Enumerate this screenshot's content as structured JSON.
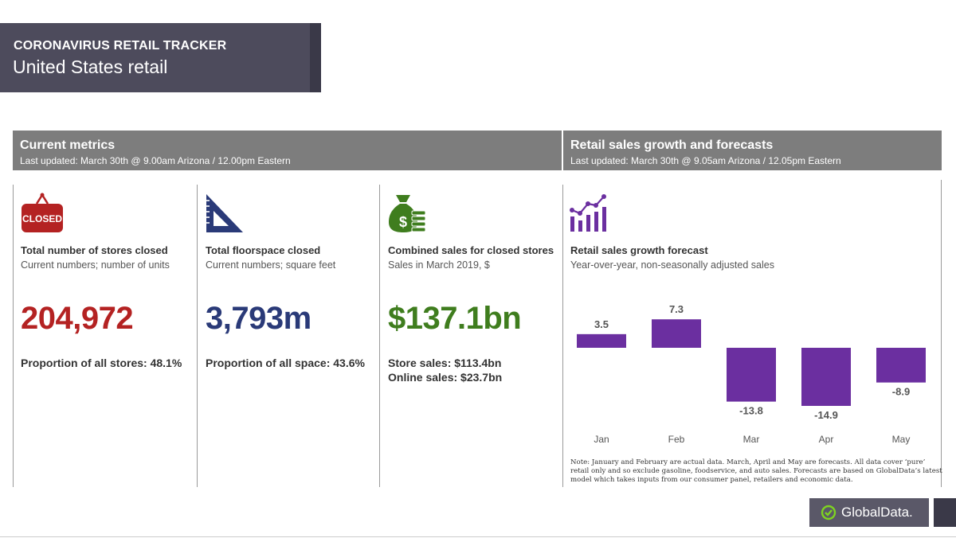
{
  "banner": {
    "title": "CORONAVIRUS RETAIL TRACKER",
    "subtitle": "United States retail"
  },
  "left_header": {
    "title": "Current metrics",
    "updated": "Last updated: March 30th @ 9.00am Arizona / 12.00pm Eastern"
  },
  "right_header": {
    "title": "Retail sales growth and forecasts",
    "updated": "Last updated: March 30th @ 9.05am Arizona / 12.05pm Eastern"
  },
  "metrics": [
    {
      "icon": "closed-sign-icon",
      "icon_text": "CLOSED",
      "title": "Total number of stores closed",
      "subtitle": "Current numbers; number of units",
      "value": "204,972",
      "proportion": "Proportion of all stores: 48.1%",
      "color": "#b42222"
    },
    {
      "icon": "set-square-icon",
      "title": "Total floorspace closed",
      "subtitle": "Current numbers; square feet",
      "value": "3,793m",
      "proportion": "Proportion of all space: 43.6%",
      "color": "#2a3a78"
    },
    {
      "icon": "money-bag-icon",
      "title": "Combined sales for closed stores",
      "subtitle": "Sales in March 2019, $",
      "value": "$137.1bn",
      "store_sales": "Store sales: $113.4bn",
      "online_sales": "Online sales: $23.7bn",
      "color": "#3f7d1e"
    }
  ],
  "chart_data": {
    "type": "bar",
    "title": "Retail sales growth forecast",
    "subtitle": "Year-over-year, non-seasonally adjusted sales",
    "categories": [
      "Jan",
      "Feb",
      "Mar",
      "Apr",
      "May"
    ],
    "values": [
      3.5,
      7.3,
      -13.8,
      -14.9,
      -8.9
    ],
    "value_labels": [
      "3.5",
      "7.3",
      "-13.8",
      "-14.9",
      "-8.9"
    ],
    "bar_color": "#6b2fa0",
    "ylim": [
      -16,
      9
    ],
    "xlabel": "",
    "ylabel": ""
  },
  "chart_icon": "chart-growth-icon",
  "note": "Note: January and February are actual data. March, April and May are forecasts. All data cover ‘pure’ retail only and so exclude gasoline, foodservice, and auto sales. Forecasts are based on GlobalData’s latest model which takes inputs from our consumer panel, retailers and economic data.",
  "logo": {
    "text": "GlobalData."
  }
}
